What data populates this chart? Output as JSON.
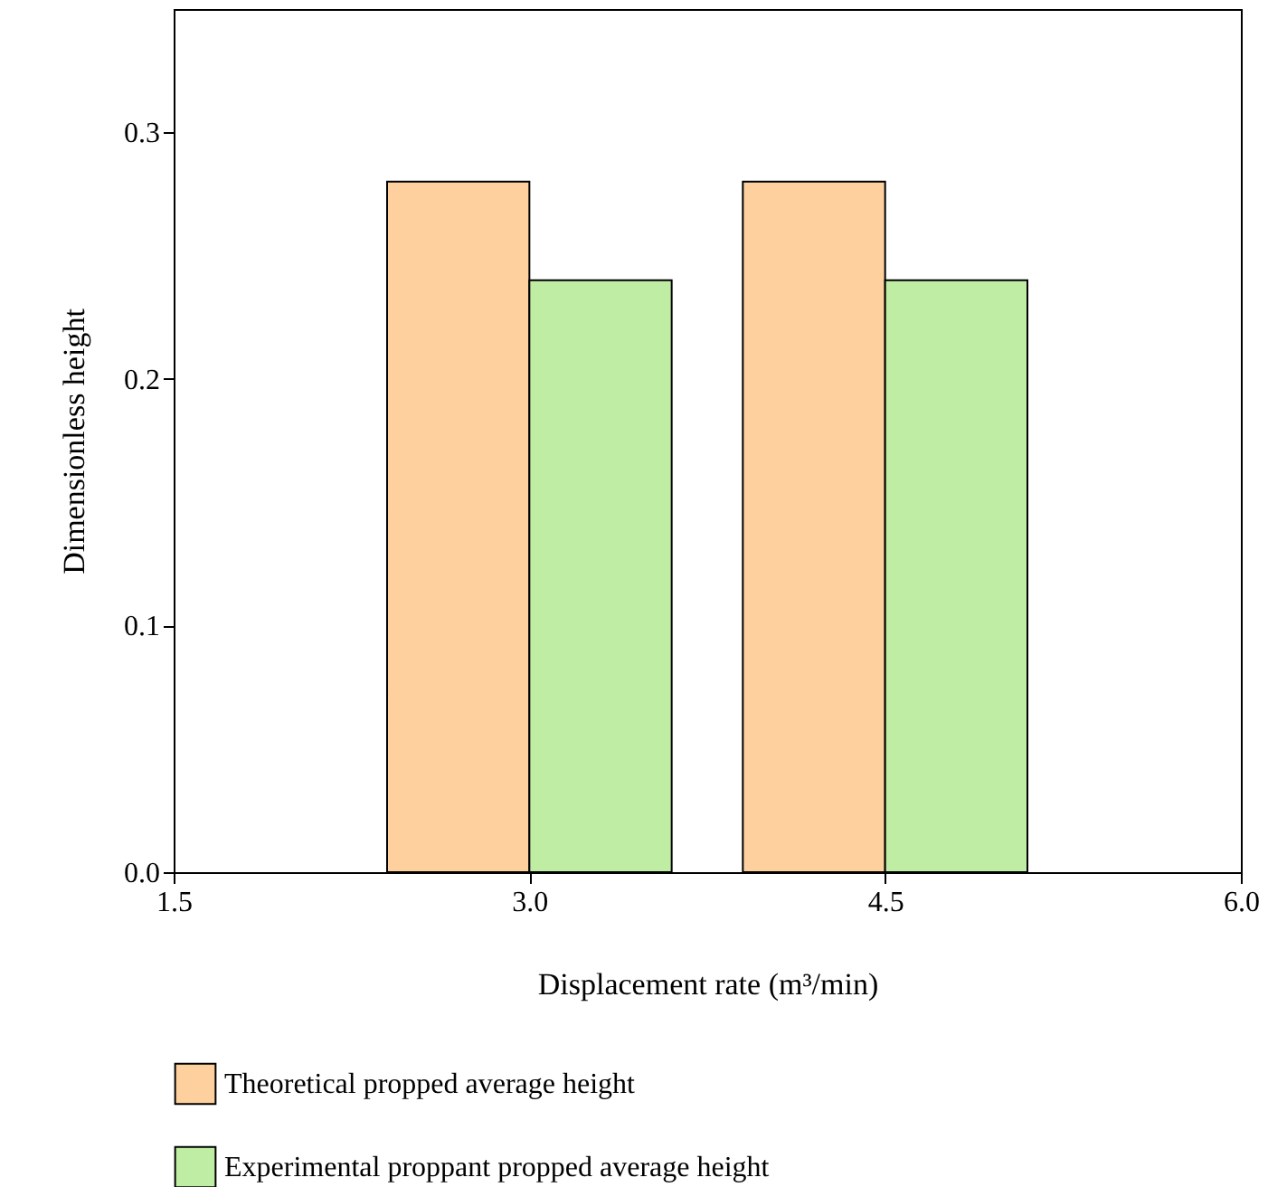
{
  "chart_data": {
    "type": "bar",
    "xlabel": "Displacement rate (m³/min)",
    "ylabel": "Dimensionless height",
    "x": [
      3.0,
      4.5
    ],
    "xlim": [
      1.5,
      6.0
    ],
    "xticks": [
      {
        "value": 1.5,
        "label": "1.5"
      },
      {
        "value": 3.0,
        "label": "3.0"
      },
      {
        "value": 4.5,
        "label": "4.5"
      },
      {
        "value": 6.0,
        "label": "6.0"
      }
    ],
    "ylim": [
      0,
      0.35
    ],
    "yticks": [
      {
        "value": 0,
        "label": "0.0"
      },
      0.1,
      0.2,
      0.3
    ],
    "grid": false,
    "legend": "bottom",
    "series": [
      {
        "name": "Theoretical propped average height",
        "color": "#fdd09e",
        "values": [
          0.28,
          0.28
        ]
      },
      {
        "name": "Experimental proppant propped average height",
        "color": "#c0eda4",
        "values": [
          0.24,
          0.24
        ]
      }
    ]
  }
}
